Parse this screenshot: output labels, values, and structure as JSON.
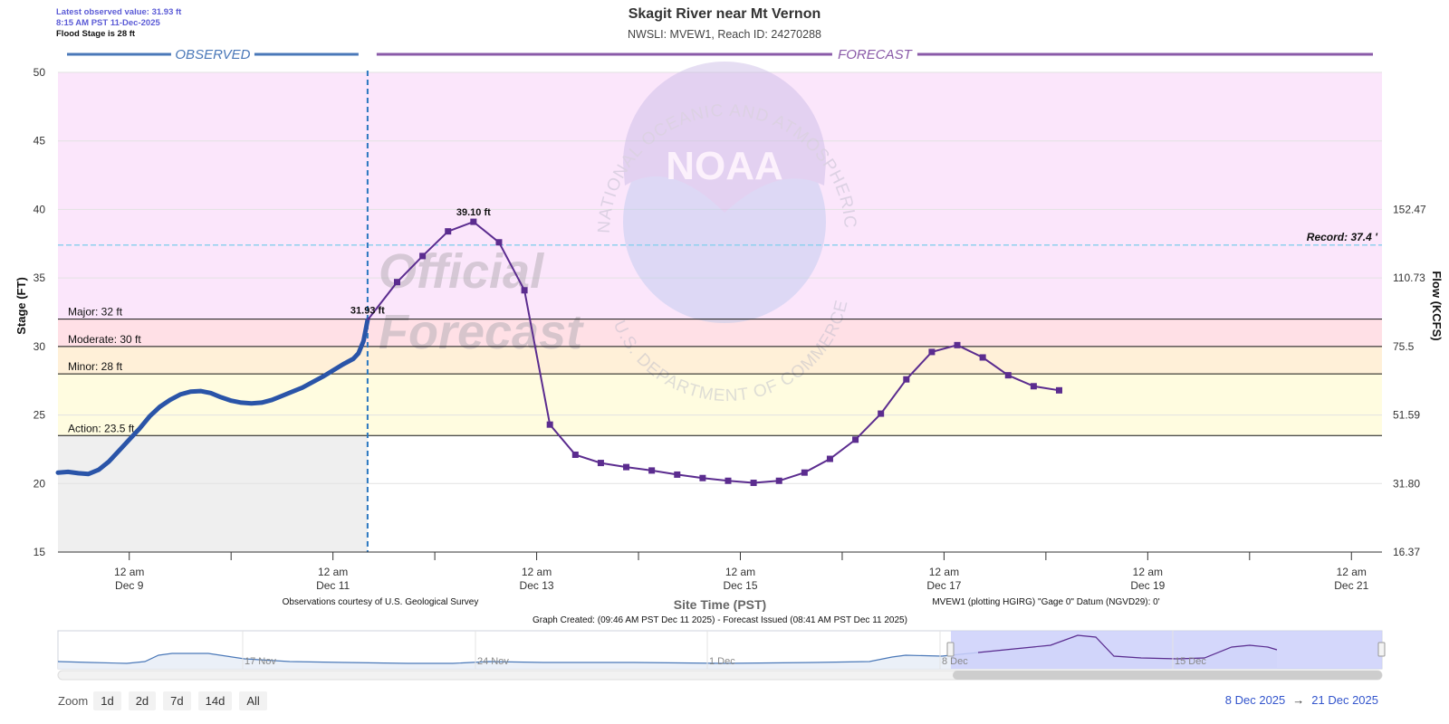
{
  "header": {
    "title": "Skagit River near Mt Vernon",
    "subtitle": "NWSLI: MVEW1, Reach ID: 24270288",
    "latest_line1": "Latest observed value: 31.93 ft",
    "latest_line2": "8:15 AM PST 11-Dec-2025",
    "flood_stage": "Flood Stage is 28 ft"
  },
  "chart_data": {
    "type": "line",
    "xlabel": "Site Time (PST)",
    "ylabel": "Stage (FT)",
    "y2label": "Flow (KCFS)",
    "ylim": [
      15,
      50
    ],
    "x_range_days": [
      8.3,
      21.3
    ],
    "yticks": [
      15,
      20,
      25,
      30,
      35,
      40,
      45,
      50
    ],
    "y2ticks": [
      {
        "stage": 15,
        "label": "16.37"
      },
      {
        "stage": 20,
        "label": "31.80"
      },
      {
        "stage": 25,
        "label": "51.59"
      },
      {
        "stage": 30,
        "label": "75.5"
      },
      {
        "stage": 35,
        "label": "110.73"
      },
      {
        "stage": 40,
        "label": "152.47"
      }
    ],
    "xticks": [
      {
        "day": 9,
        "l1": "12 am",
        "l2": "Dec 9"
      },
      {
        "day": 11,
        "l1": "12 am",
        "l2": "Dec 11"
      },
      {
        "day": 13,
        "l1": "12 am",
        "l2": "Dec 13"
      },
      {
        "day": 15,
        "l1": "12 am",
        "l2": "Dec 15"
      },
      {
        "day": 17,
        "l1": "12 am",
        "l2": "Dec 17"
      },
      {
        "day": 19,
        "l1": "12 am",
        "l2": "Dec 19"
      },
      {
        "day": 21,
        "l1": "12 am",
        "l2": "Dec 21"
      }
    ],
    "minor_ticks": [
      10,
      12,
      14,
      16,
      18,
      20
    ],
    "observed_label": "OBSERVED",
    "forecast_label": "FORECAST",
    "now_day": 11.34,
    "thresholds": [
      {
        "name": "Major",
        "label": "Major: 32 ft",
        "value": 32
      },
      {
        "name": "Moderate",
        "label": "Moderate: 30 ft",
        "value": 30
      },
      {
        "name": "Minor",
        "label": "Minor: 28 ft",
        "value": 28
      },
      {
        "name": "Action",
        "label": "Action: 23.5 ft",
        "value": 23.5
      }
    ],
    "zones": [
      {
        "from": 15,
        "to": 23.5,
        "color": "#ffffff"
      },
      {
        "from": 23.5,
        "to": 28,
        "color": "#fffce0"
      },
      {
        "from": 28,
        "to": 30,
        "color": "#fff0d8"
      },
      {
        "from": 30,
        "to": 32,
        "color": "#ffe0e6"
      },
      {
        "from": 32,
        "to": 50,
        "color": "#fbe6fb"
      }
    ],
    "observed_shade_color": "#efefef",
    "record": {
      "label": "Record: 37.4 '",
      "value": 37.4
    },
    "series": [
      {
        "name": "Observed",
        "color": "#2a54a8",
        "points": [
          [
            8.3,
            20.8
          ],
          [
            8.4,
            20.85
          ],
          [
            8.5,
            20.75
          ],
          [
            8.6,
            20.7
          ],
          [
            8.7,
            21.0
          ],
          [
            8.8,
            21.6
          ],
          [
            8.9,
            22.4
          ],
          [
            9.0,
            23.2
          ],
          [
            9.1,
            24.0
          ],
          [
            9.2,
            24.9
          ],
          [
            9.3,
            25.6
          ],
          [
            9.4,
            26.1
          ],
          [
            9.5,
            26.5
          ],
          [
            9.6,
            26.7
          ],
          [
            9.7,
            26.75
          ],
          [
            9.8,
            26.6
          ],
          [
            9.9,
            26.3
          ],
          [
            10.0,
            26.05
          ],
          [
            10.1,
            25.9
          ],
          [
            10.2,
            25.85
          ],
          [
            10.3,
            25.9
          ],
          [
            10.4,
            26.1
          ],
          [
            10.5,
            26.4
          ],
          [
            10.6,
            26.7
          ],
          [
            10.7,
            27.0
          ],
          [
            10.8,
            27.4
          ],
          [
            10.9,
            27.8
          ],
          [
            11.0,
            28.25
          ],
          [
            11.1,
            28.7
          ],
          [
            11.2,
            29.1
          ],
          [
            11.25,
            29.5
          ],
          [
            11.3,
            30.4
          ],
          [
            11.34,
            31.93
          ]
        ]
      },
      {
        "name": "Forecast",
        "color": "#5b2c8f",
        "points": [
          [
            11.34,
            31.93
          ],
          [
            11.63,
            34.7
          ],
          [
            11.88,
            36.6
          ],
          [
            12.13,
            38.4
          ],
          [
            12.38,
            39.1
          ],
          [
            12.63,
            37.6
          ],
          [
            12.88,
            34.1
          ],
          [
            13.13,
            24.3
          ],
          [
            13.38,
            22.1
          ],
          [
            13.63,
            21.5
          ],
          [
            13.88,
            21.2
          ],
          [
            14.13,
            20.95
          ],
          [
            14.38,
            20.65
          ],
          [
            14.63,
            20.4
          ],
          [
            14.88,
            20.2
          ],
          [
            15.13,
            20.05
          ],
          [
            15.38,
            20.2
          ],
          [
            15.63,
            20.8
          ],
          [
            15.88,
            21.8
          ],
          [
            16.13,
            23.2
          ],
          [
            16.38,
            25.1
          ],
          [
            16.63,
            27.6
          ],
          [
            16.88,
            29.6
          ],
          [
            17.13,
            30.1
          ],
          [
            17.38,
            29.2
          ],
          [
            17.63,
            27.9
          ],
          [
            17.88,
            27.1
          ],
          [
            18.13,
            26.8
          ]
        ]
      }
    ],
    "annotations": [
      {
        "day": 11.34,
        "value": 31.93,
        "label": "31.93 ft"
      },
      {
        "day": 12.38,
        "value": 39.1,
        "label": "39.10 ft"
      }
    ],
    "watermark": {
      "logo_text": "NOAA",
      "arc_top": "NATIONAL OCEANIC AND ATMOSPHERIC ADMINISTRATION",
      "arc_bottom": "U.S. DEPARTMENT OF COMMERCE",
      "stamp_line1": "Official",
      "stamp_line2": "Forecast"
    }
  },
  "footnotes": {
    "observations_credit": "Observations courtesy of U.S. Geological Survey",
    "datum_note": "MVEW1 (plotting HGIRG) \"Gage 0\" Datum (NGVD29): 0'",
    "graph_created": "Graph Created: (09:46 AM PST Dec 11 2025) - Forecast Issued (08:41 AM PST Dec 11 2025)"
  },
  "navigator": {
    "labels": [
      "17 Nov",
      "24 Nov",
      "1 Dec",
      "8 Dec",
      "15 Dec"
    ]
  },
  "zoom": {
    "label": "Zoom",
    "buttons": [
      "1d",
      "2d",
      "7d",
      "14d",
      "All"
    ]
  },
  "range": {
    "from": "8 Dec 2025",
    "arrow": "→",
    "to": "21 Dec 2025"
  },
  "colors": {
    "observed": "#2a54a8",
    "forecast": "#5b2c8f",
    "observed_header": "#4a78b8",
    "forecast_header": "#8a5aa8",
    "record_line": "#8fd0ee",
    "now_line": "#2a77c0",
    "navigator_selection": "#ccd0fa"
  }
}
